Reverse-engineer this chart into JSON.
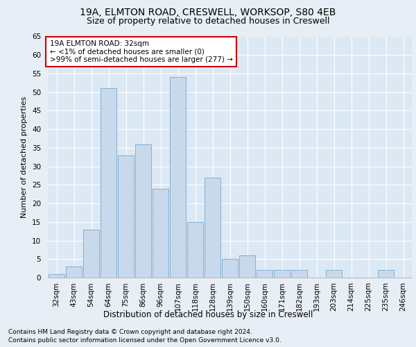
{
  "title1": "19A, ELMTON ROAD, CRESWELL, WORKSOP, S80 4EB",
  "title2": "Size of property relative to detached houses in Creswell",
  "xlabel": "Distribution of detached houses by size in Creswell",
  "ylabel": "Number of detached properties",
  "categories": [
    "32sqm",
    "43sqm",
    "54sqm",
    "64sqm",
    "75sqm",
    "86sqm",
    "96sqm",
    "107sqm",
    "118sqm",
    "128sqm",
    "139sqm",
    "150sqm",
    "160sqm",
    "171sqm",
    "182sqm",
    "193sqm",
    "203sqm",
    "214sqm",
    "225sqm",
    "235sqm",
    "246sqm"
  ],
  "values": [
    1,
    3,
    13,
    51,
    33,
    36,
    24,
    54,
    15,
    27,
    5,
    6,
    2,
    2,
    2,
    0,
    2,
    0,
    0,
    2,
    0
  ],
  "bar_color": "#c9d9ec",
  "bar_edge_color": "#7fb0d4",
  "annotation_title": "19A ELMTON ROAD: 32sqm",
  "annotation_line1": "← <1% of detached houses are smaller (0)",
  "annotation_line2": ">99% of semi-detached houses are larger (277) →",
  "annotation_box_color": "#ffffff",
  "annotation_box_edge_color": "#cc0000",
  "ylim": [
    0,
    65
  ],
  "yticks": [
    0,
    5,
    10,
    15,
    20,
    25,
    30,
    35,
    40,
    45,
    50,
    55,
    60,
    65
  ],
  "footnote1": "Contains HM Land Registry data © Crown copyright and database right 2024.",
  "footnote2": "Contains public sector information licensed under the Open Government Licence v3.0.",
  "bg_color": "#e8eef5",
  "plot_bg_color": "#dce8f4",
  "title1_fontsize": 10,
  "title2_fontsize": 9,
  "ylabel_fontsize": 8,
  "xlabel_fontsize": 8.5,
  "tick_fontsize": 7.5,
  "annot_fontsize": 7.5,
  "footnote_fontsize": 6.5
}
